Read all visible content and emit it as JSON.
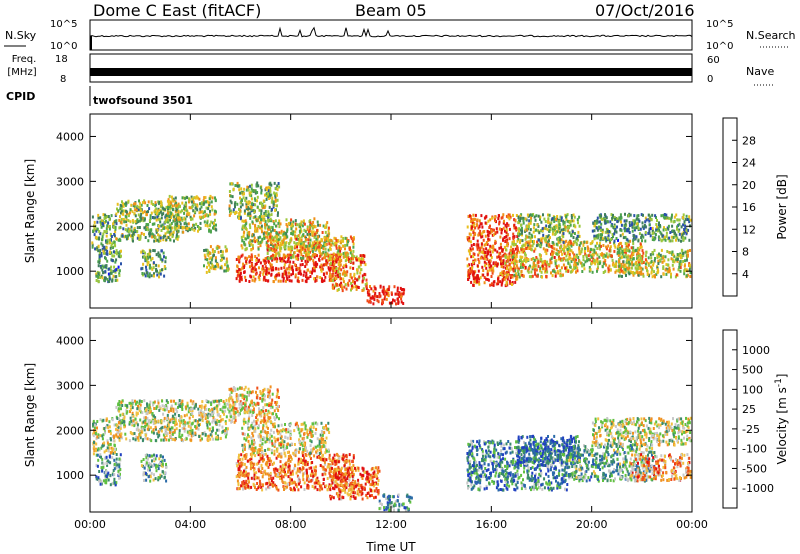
{
  "header": {
    "title": "Dome C East (fitACF)",
    "beam": "Beam 05",
    "date": "07/Oct/2016"
  },
  "labels": {
    "nsky": "N.Sky",
    "nsearch": "N.Search",
    "freq_line1": "Freq.",
    "freq_line2": "[MHz]",
    "cpid": "CPID",
    "nave": "Nave",
    "cpid_value": "twofsound 3501",
    "nsky_ticks": [
      "10^5",
      "10^0"
    ],
    "nsearch_ticks": [
      "10^5",
      "10^0"
    ],
    "freq_ticks": [
      "18",
      "8"
    ],
    "nave_ticks": [
      "60",
      "0"
    ]
  },
  "chart_data": [
    {
      "type": "heatmap",
      "name": "power",
      "ylabel": "Slant Range [km]",
      "xlabel": "",
      "xlim": [
        0,
        24
      ],
      "ylim": [
        180,
        4500
      ],
      "x_ticks": [
        0,
        4,
        8,
        12,
        16,
        20,
        24
      ],
      "y_ticks": [
        1000,
        2000,
        3000,
        4000
      ],
      "colorbar": {
        "label": "Power [dB]",
        "ticks": [
          "4",
          "8",
          "12",
          "16",
          "20",
          "24",
          "28"
        ],
        "range": [
          0,
          32
        ],
        "colors": [
          "#1010ff",
          "#2a52a8",
          "#3f7f5a",
          "#4ca44c",
          "#9cc83c",
          "#e8c020",
          "#f09018",
          "#f04818",
          "#e01010"
        ]
      },
      "regions": [
        {
          "t0": 0.0,
          "t1": 1.0,
          "r0": 1500,
          "r1": 2300,
          "level": 0.4
        },
        {
          "t0": 0.2,
          "t1": 1.2,
          "r0": 800,
          "r1": 1500,
          "level": 0.35
        },
        {
          "t0": 1.0,
          "t1": 3.5,
          "r0": 1700,
          "r1": 2600,
          "level": 0.45
        },
        {
          "t0": 3.0,
          "t1": 5.0,
          "r0": 1900,
          "r1": 2700,
          "level": 0.5
        },
        {
          "t0": 2.0,
          "t1": 3.0,
          "r0": 900,
          "r1": 1500,
          "level": 0.4
        },
        {
          "t0": 4.5,
          "t1": 5.5,
          "r0": 1000,
          "r1": 1600,
          "level": 0.5
        },
        {
          "t0": 5.5,
          "t1": 7.5,
          "r0": 2200,
          "r1": 3000,
          "level": 0.45
        },
        {
          "t0": 5.8,
          "t1": 10.0,
          "r0": 800,
          "r1": 1400,
          "level": 0.9
        },
        {
          "t0": 6.0,
          "t1": 9.5,
          "r0": 1500,
          "r1": 2200,
          "level": 0.55
        },
        {
          "t0": 7.0,
          "t1": 10.5,
          "r0": 1300,
          "r1": 1800,
          "level": 0.65
        },
        {
          "t0": 9.5,
          "t1": 11.0,
          "r0": 600,
          "r1": 1400,
          "level": 0.75
        },
        {
          "t0": 11.0,
          "t1": 12.5,
          "r0": 300,
          "r1": 700,
          "level": 0.95
        },
        {
          "t0": 15.0,
          "t1": 17.0,
          "r0": 700,
          "r1": 2300,
          "level": 0.85
        },
        {
          "t0": 16.5,
          "t1": 19.0,
          "r0": 900,
          "r1": 1700,
          "level": 0.65
        },
        {
          "t0": 17.0,
          "t1": 19.5,
          "r0": 1600,
          "r1": 2300,
          "level": 0.45
        },
        {
          "t0": 19.0,
          "t1": 22.0,
          "r0": 1000,
          "r1": 1700,
          "level": 0.6
        },
        {
          "t0": 21.0,
          "t1": 24.0,
          "r0": 900,
          "r1": 1500,
          "level": 0.55
        },
        {
          "t0": 20.0,
          "t1": 24.0,
          "r0": 1700,
          "r1": 2300,
          "level": 0.35
        }
      ]
    },
    {
      "type": "heatmap",
      "name": "velocity",
      "ylabel": "Slant Range [km]",
      "xlabel": "Time UT",
      "xlim": [
        0,
        24
      ],
      "ylim": [
        180,
        4500
      ],
      "x_ticks": [
        0,
        4,
        8,
        12,
        16,
        20,
        24
      ],
      "x_tick_labels": [
        "00:00",
        "04:00",
        "08:00",
        "12:00",
        "16:00",
        "20:00",
        "00:00"
      ],
      "y_ticks": [
        1000,
        2000,
        3000,
        4000
      ],
      "colorbar": {
        "label": "Velocity [m s",
        "label_sup": "-1",
        "label_end": "]",
        "ticks": [
          "1000",
          "500",
          "100",
          "25",
          "-25",
          "-100",
          "-500",
          "-1000"
        ],
        "colors": [
          "#2040c0",
          "#2a6aa8",
          "#3a8a6a",
          "#60c040",
          "#c8c8c8",
          "#f0c040",
          "#f09020",
          "#f05018",
          "#e01010"
        ]
      },
      "regions": [
        {
          "t0": 0.0,
          "t1": 1.0,
          "r0": 1500,
          "r1": 2300,
          "level": 0.5
        },
        {
          "t0": 0.2,
          "t1": 1.2,
          "r0": 800,
          "r1": 1500,
          "level": 0.3
        },
        {
          "t0": 1.0,
          "t1": 5.5,
          "r0": 1800,
          "r1": 2700,
          "level": 0.5
        },
        {
          "t0": 2.0,
          "t1": 3.0,
          "r0": 900,
          "r1": 1500,
          "level": 0.35
        },
        {
          "t0": 5.5,
          "t1": 7.5,
          "r0": 2200,
          "r1": 3000,
          "level": 0.6
        },
        {
          "t0": 5.8,
          "t1": 10.5,
          "r0": 700,
          "r1": 1500,
          "level": 0.78
        },
        {
          "t0": 6.0,
          "t1": 9.5,
          "r0": 1500,
          "r1": 2200,
          "level": 0.55
        },
        {
          "t0": 9.5,
          "t1": 11.5,
          "r0": 500,
          "r1": 1200,
          "level": 0.8
        },
        {
          "t0": 11.5,
          "t1": 12.8,
          "r0": 250,
          "r1": 600,
          "level": 0.3
        },
        {
          "t0": 15.0,
          "t1": 19.0,
          "r0": 700,
          "r1": 1800,
          "level": 0.25
        },
        {
          "t0": 17.0,
          "t1": 19.5,
          "r0": 1300,
          "r1": 1900,
          "level": 0.15
        },
        {
          "t0": 19.0,
          "t1": 22.5,
          "r0": 900,
          "r1": 1700,
          "level": 0.35
        },
        {
          "t0": 21.5,
          "t1": 24.0,
          "r0": 900,
          "r1": 1500,
          "level": 0.7
        },
        {
          "t0": 20.0,
          "t1": 24.0,
          "r0": 1700,
          "r1": 2300,
          "level": 0.5
        }
      ]
    }
  ]
}
